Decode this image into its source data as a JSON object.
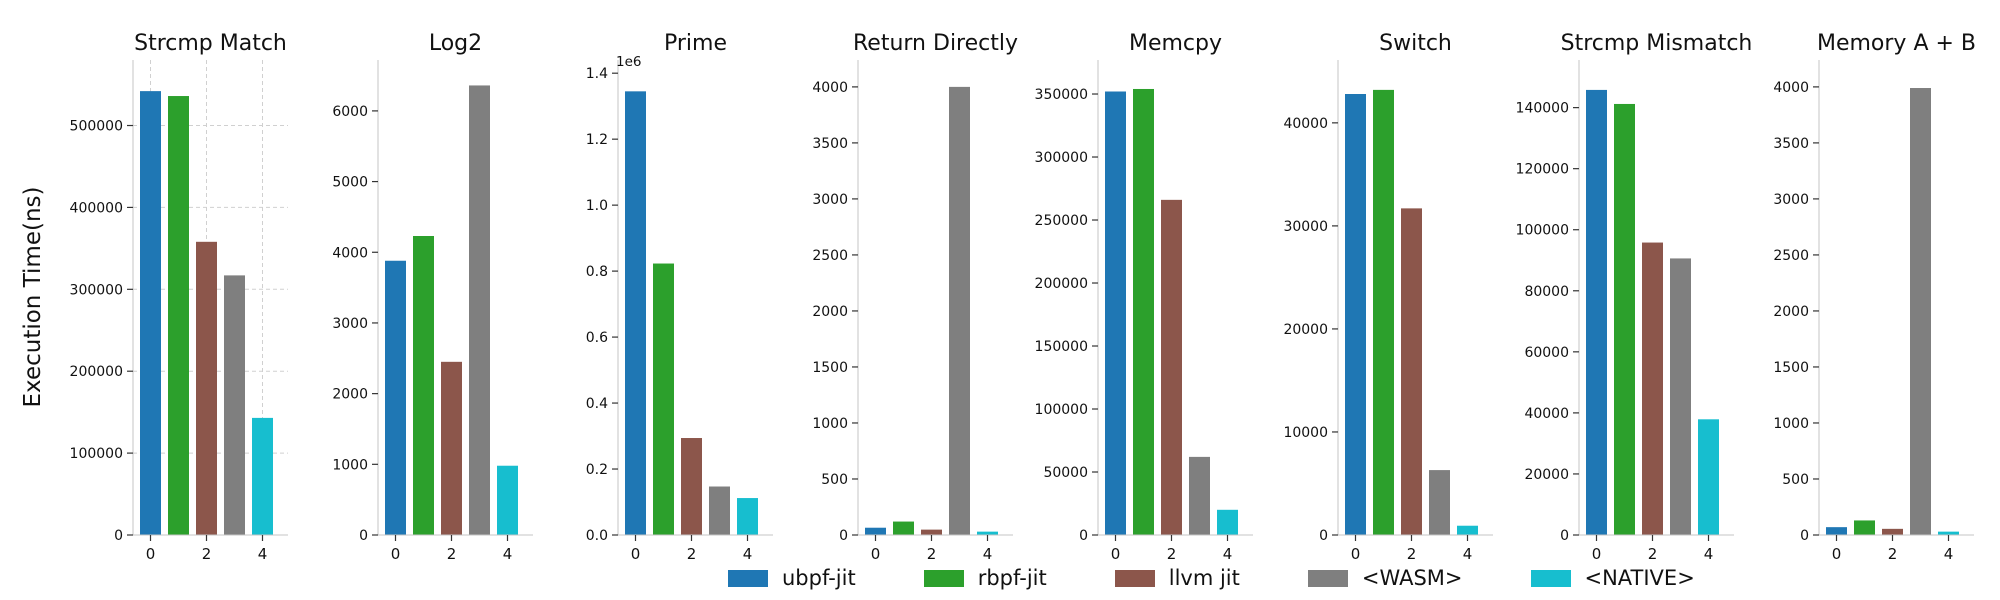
{
  "chart_data": {
    "type": "bar",
    "figure_title": "",
    "ylabel": "Execution Time(ns)",
    "series": [
      "ubpf-jit",
      "rbpf-jit",
      "llvm jit",
      "<WASM>",
      "<NATIVE>"
    ],
    "colors": [
      "#1f77b4",
      "#2ca02c",
      "#8c564b",
      "#7f7f7f",
      "#17becf"
    ],
    "xtick_labels": [
      "0",
      "2",
      "4"
    ],
    "legend_position": "bottom center",
    "subplots": [
      {
        "title": "Strcmp Match",
        "values": [
          542000,
          536000,
          358000,
          317000,
          143000
        ],
        "ytick_values": [
          0,
          100000,
          200000,
          300000,
          400000,
          500000
        ],
        "ytick_labels": [
          "0",
          "100000",
          "200000",
          "300000",
          "400000",
          "500000"
        ],
        "ylim": [
          0,
          580000
        ],
        "grid": true,
        "offset_label": ""
      },
      {
        "title": "Log2",
        "values": [
          3880,
          4230,
          2450,
          6360,
          980
        ],
        "ytick_values": [
          0,
          1000,
          2000,
          3000,
          4000,
          5000,
          6000
        ],
        "ytick_labels": [
          "0",
          "1000",
          "2000",
          "3000",
          "4000",
          "5000",
          "6000"
        ],
        "ylim": [
          0,
          6720
        ],
        "grid": false,
        "offset_label": ""
      },
      {
        "title": "Prime",
        "values": [
          1345000,
          823000,
          294000,
          147000,
          112000
        ],
        "ytick_values": [
          0,
          200000,
          400000,
          600000,
          800000,
          1000000,
          1200000,
          1400000
        ],
        "ytick_labels": [
          "0.0",
          "0.2",
          "0.4",
          "0.6",
          "0.8",
          "1.0",
          "1.2",
          "1.4"
        ],
        "ylim": [
          0,
          1440000
        ],
        "grid": false,
        "offset_label": "1e6"
      },
      {
        "title": "Return Directly",
        "values": [
          65,
          120,
          48,
          4000,
          30
        ],
        "ytick_values": [
          0,
          500,
          1000,
          1500,
          2000,
          2500,
          3000,
          3500,
          4000
        ],
        "ytick_labels": [
          "0",
          "500",
          "1000",
          "1500",
          "2000",
          "2500",
          "3000",
          "3500",
          "4000"
        ],
        "ylim": [
          0,
          4240
        ],
        "grid": false,
        "offset_label": ""
      },
      {
        "title": "Memcpy",
        "values": [
          352000,
          354000,
          266000,
          62000,
          20000
        ],
        "ytick_values": [
          0,
          50000,
          100000,
          150000,
          200000,
          250000,
          300000,
          350000
        ],
        "ytick_labels": [
          "0",
          "50000",
          "100000",
          "150000",
          "200000",
          "250000",
          "300000",
          "350000"
        ],
        "ylim": [
          0,
          377000
        ],
        "grid": false,
        "offset_label": ""
      },
      {
        "title": "Switch",
        "values": [
          42800,
          43200,
          31700,
          6300,
          900
        ],
        "ytick_values": [
          0,
          10000,
          20000,
          30000,
          40000
        ],
        "ytick_labels": [
          "0",
          "10000",
          "20000",
          "30000",
          "40000"
        ],
        "ylim": [
          0,
          46100
        ],
        "grid": false,
        "offset_label": ""
      },
      {
        "title": "Strcmp Mismatch",
        "values": [
          145800,
          141200,
          95800,
          90600,
          37900
        ],
        "ytick_values": [
          0,
          20000,
          40000,
          60000,
          80000,
          100000,
          120000,
          140000
        ],
        "ytick_labels": [
          "0",
          "20000",
          "40000",
          "60000",
          "80000",
          "100000",
          "120000",
          "140000"
        ],
        "ylim": [
          0,
          155600
        ],
        "grid": false,
        "offset_label": ""
      },
      {
        "title": "Memory A + B",
        "values": [
          70,
          130,
          55,
          3990,
          30
        ],
        "ytick_values": [
          0,
          500,
          1000,
          1500,
          2000,
          2500,
          3000,
          3500,
          4000
        ],
        "ytick_labels": [
          "0",
          "500",
          "1000",
          "1500",
          "2000",
          "2500",
          "3000",
          "3500",
          "4000"
        ],
        "ylim": [
          0,
          4240
        ],
        "grid": false,
        "offset_label": ""
      }
    ]
  },
  "legend": {
    "items": [
      {
        "label": "ubpf-jit",
        "color": "#1f77b4"
      },
      {
        "label": "rbpf-jit",
        "color": "#2ca02c"
      },
      {
        "label": "llvm jit",
        "color": "#8c564b"
      },
      {
        "label": "<WASM>",
        "color": "#7f7f7f"
      },
      {
        "label": "<NATIVE>",
        "color": "#17becf"
      }
    ]
  },
  "style_colors": {
    "spine": "#c4c4c4",
    "tick": "#333333",
    "text": "#111111",
    "grid": "#d0d0d0",
    "background": "#ffffff"
  }
}
